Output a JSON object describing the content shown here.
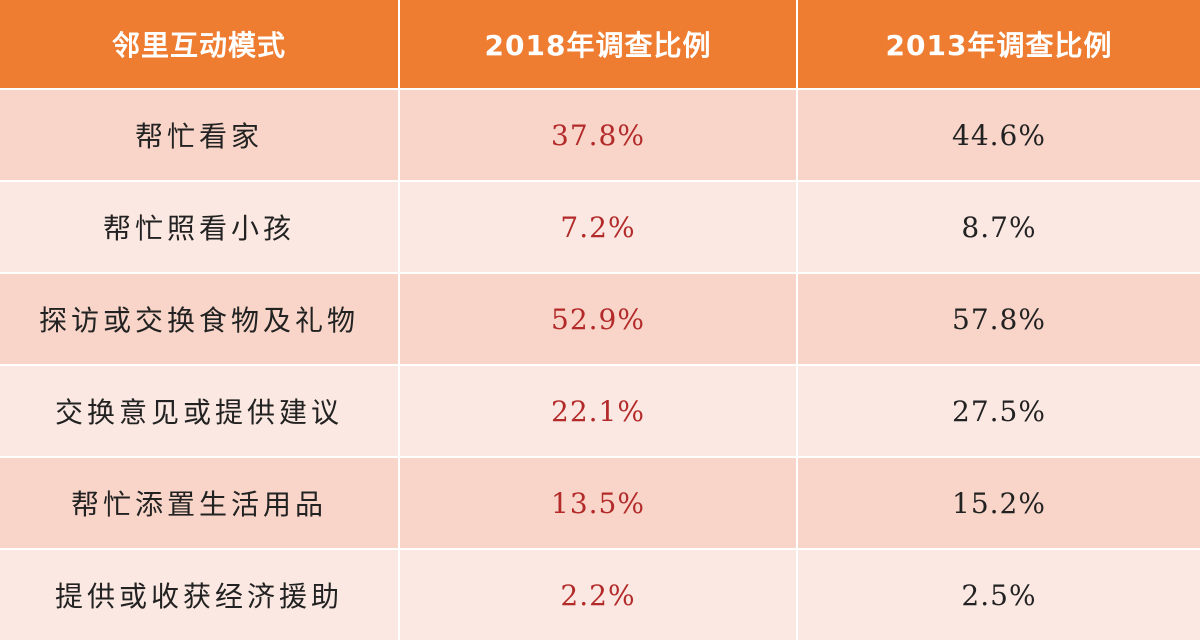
{
  "table": {
    "headers": [
      "邻里互动模式",
      "2018年调查比例",
      "2013年调查比例"
    ],
    "rows": [
      {
        "mode": "帮忙看家",
        "y2018": "37.8%",
        "y2013": "44.6%"
      },
      {
        "mode": "帮忙照看小孩",
        "y2018": "7.2%",
        "y2013": "8.7%"
      },
      {
        "mode": "探访或交换食物及礼物",
        "y2018": "52.9%",
        "y2013": "57.8%"
      },
      {
        "mode": "交换意见或提供建议",
        "y2018": "22.1%",
        "y2013": "27.5%"
      },
      {
        "mode": "帮忙添置生活用品",
        "y2018": "13.5%",
        "y2013": "15.2%"
      },
      {
        "mode": "提供或收获经济援助",
        "y2018": "2.2%",
        "y2013": "2.5%"
      }
    ]
  },
  "colors": {
    "header_bg": "#ee7d32",
    "row_odd_bg": "#f8d5c8",
    "row_even_bg": "#fbe8e2",
    "value_2018": "#b32a2a",
    "value_2013": "#222222"
  }
}
